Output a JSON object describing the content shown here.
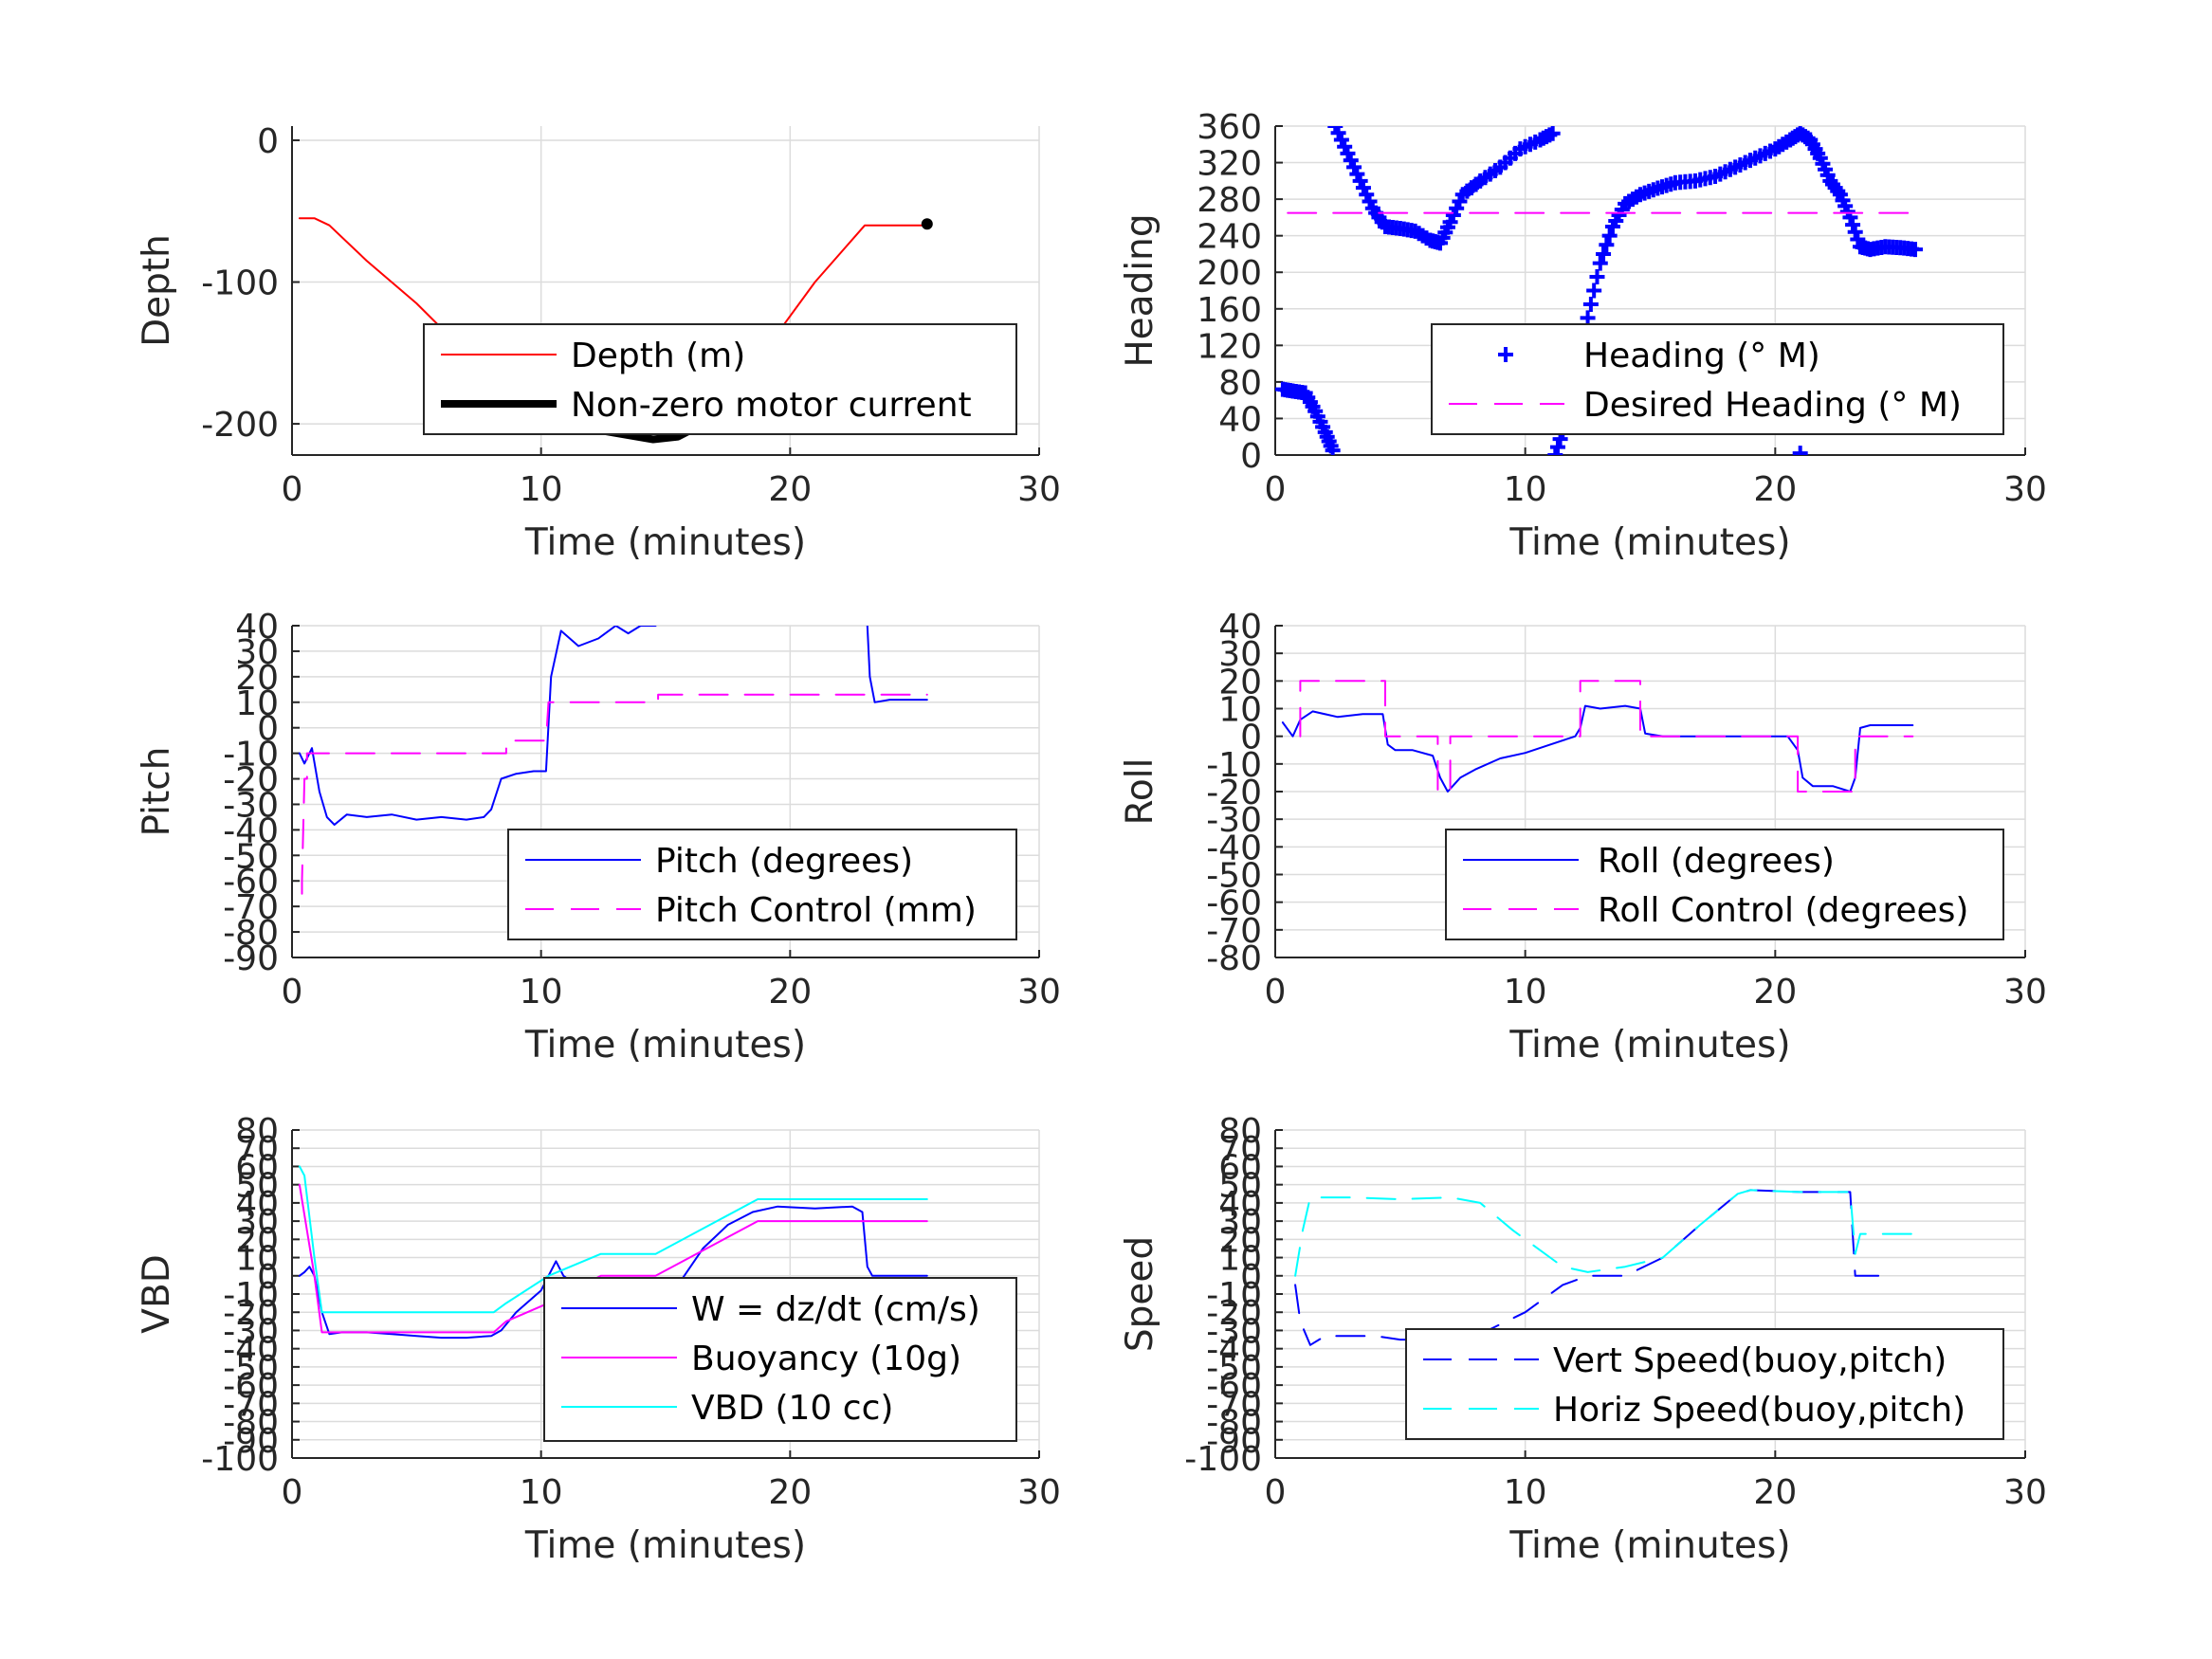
{
  "chart_data": [
    {
      "id": "depth",
      "type": "line",
      "title": "",
      "xlabel": "Time (minutes)",
      "ylabel": "Depth",
      "xlim": [
        0,
        30
      ],
      "ylim": [
        -222,
        10
      ],
      "xticks": [
        0,
        10,
        20,
        30
      ],
      "yticks": [
        0,
        -100,
        -200
      ],
      "grid": true,
      "legend_placement": "lower-right",
      "series": [
        {
          "name": "Depth (m)",
          "style": "solid",
          "color": "#ff0000",
          "x": [
            0.3,
            0.9,
            1.5,
            3,
            5,
            7,
            8.2,
            10,
            12,
            14,
            15,
            16,
            17,
            18,
            19,
            21,
            23,
            25.5
          ],
          "y": [
            -55,
            -55,
            -60,
            -85,
            -115,
            -150,
            -186,
            -198,
            -205,
            -210,
            -210,
            -205,
            -190,
            -170,
            -148,
            -100,
            -60,
            -60
          ]
        },
        {
          "name": "Non-zero motor current",
          "style": "thick",
          "color": "#000000",
          "x": [
            8.2,
            9,
            10,
            10.5,
            11,
            12,
            12.5,
            14.5,
            15.5,
            16.5,
            17.5,
            18.5
          ],
          "y": [
            -186,
            -193,
            -199,
            -198,
            -199,
            -203,
            -205,
            -211,
            -209,
            -200,
            -185,
            -162
          ]
        },
        {
          "name": "",
          "style": "dot",
          "color": "#000000",
          "x": [
            25.5
          ],
          "y": [
            -59
          ]
        }
      ]
    },
    {
      "id": "heading",
      "type": "scatter",
      "title": "",
      "xlabel": "Time (minutes)",
      "ylabel": "Heading",
      "xlim": [
        0,
        30
      ],
      "ylim": [
        0,
        360
      ],
      "xticks": [
        0,
        10,
        20,
        30
      ],
      "yticks": [
        0,
        40,
        80,
        120,
        160,
        200,
        240,
        280,
        320,
        360
      ],
      "grid": true,
      "legend_placement": "lower-right",
      "series": [
        {
          "name": "Heading (° M)",
          "style": "plus",
          "color": "#0000ff",
          "x": [
            0.3,
            0.7,
            1.2,
            1.6,
            2.0,
            2.3,
            2.4,
            2.9,
            3.4,
            3.9,
            4.4,
            5.0,
            5.6,
            6.2,
            6.6,
            7.0,
            7.5,
            8.2,
            9.0,
            9.8,
            10.6,
            11.1,
            11.2,
            11.6,
            12.0,
            12.5,
            13.0,
            13.5,
            14.0,
            14.6,
            15.3,
            16.0,
            16.8,
            17.6,
            18.4,
            19.2,
            20.0,
            20.6,
            21.0,
            21.4,
            21.8,
            22.2,
            22.6,
            23.0,
            23.4,
            23.8,
            24.4,
            25.0,
            25.6,
            21.0
          ],
          "y": [
            72,
            70,
            68,
            48,
            25,
            5,
            360,
            330,
            300,
            270,
            250,
            248,
            245,
            235,
            232,
            255,
            285,
            300,
            315,
            335,
            345,
            352,
            0,
            35,
            90,
            150,
            210,
            250,
            275,
            285,
            292,
            298,
            300,
            305,
            315,
            325,
            335,
            345,
            352,
            345,
            325,
            300,
            285,
            260,
            228,
            225,
            228,
            227,
            225,
            2
          ]
        },
        {
          "name": "Desired Heading (° M)",
          "style": "dashed",
          "color": "#ff00ff",
          "x": [
            0.5,
            25.5
          ],
          "y": [
            265,
            265
          ]
        }
      ]
    },
    {
      "id": "pitch",
      "type": "line",
      "title": "",
      "xlabel": "Time (minutes)",
      "ylabel": "Pitch",
      "xlim": [
        0,
        30
      ],
      "ylim": [
        -90,
        40
      ],
      "xticks": [
        0,
        10,
        20,
        30
      ],
      "yticks": [
        -90,
        -80,
        -70,
        -60,
        -50,
        -40,
        -30,
        -20,
        -10,
        0,
        10,
        20,
        30,
        40
      ],
      "grid": true,
      "legend_placement": "lower-right",
      "series": [
        {
          "name": "Pitch (degrees)",
          "style": "solid",
          "color": "#0000ff",
          "x": [
            0.3,
            0.5,
            0.8,
            1.1,
            1.4,
            1.7,
            2.2,
            3,
            4,
            5,
            6,
            7,
            7.7,
            8,
            8.4,
            9,
            9.7,
            10.2,
            10.4,
            10.8,
            11.5,
            12.3,
            13,
            13.5,
            14,
            14.6,
            null,
            23.1,
            23.2,
            23.4,
            24,
            25.5
          ],
          "y": [
            -10,
            -14,
            -8,
            -25,
            -35,
            -38,
            -34,
            -35,
            -34,
            -36,
            -35,
            -36,
            -35,
            -32,
            -20,
            -18,
            -17,
            -17,
            20,
            38,
            32,
            35,
            40,
            37,
            40,
            40,
            null,
            40,
            20,
            10,
            11,
            11
          ]
        },
        {
          "name": "Pitch Control (mm)",
          "style": "dashed",
          "color": "#ff00ff",
          "x": [
            0.4,
            0.4,
            0.5,
            0.6,
            0.6,
            8.1,
            8.1,
            8.6,
            8.6,
            10.2,
            10.3,
            10.6,
            10.6,
            14.4,
            14.5,
            14.7,
            14.7,
            25.5
          ],
          "y": [
            -65,
            -60,
            -20,
            -20,
            -10,
            -10,
            -10,
            -10,
            -5,
            -5,
            10,
            10,
            10,
            10,
            10,
            10,
            13,
            13
          ]
        }
      ]
    },
    {
      "id": "roll",
      "type": "line",
      "title": "",
      "xlabel": "Time (minutes)",
      "ylabel": "Roll",
      "xlim": [
        0,
        30
      ],
      "ylim": [
        -80,
        40
      ],
      "xticks": [
        0,
        10,
        20,
        30
      ],
      "yticks": [
        -80,
        -70,
        -60,
        -50,
        -40,
        -30,
        -20,
        -10,
        0,
        10,
        20,
        30,
        40
      ],
      "grid": true,
      "legend_placement": "lower-right",
      "series": [
        {
          "name": "Roll (degrees)",
          "style": "solid",
          "color": "#0000ff",
          "x": [
            0.3,
            0.7,
            1.0,
            1.5,
            2.5,
            3.5,
            4.3,
            4.5,
            4.8,
            5.5,
            6.3,
            6.6,
            6.9,
            7.1,
            7.4,
            8,
            9,
            10,
            11,
            12,
            12.2,
            12.4,
            13,
            14,
            14.6,
            14.8,
            15.5,
            17,
            19,
            20.5,
            20.9,
            21.1,
            21.5,
            22.3,
            23.0,
            23.2,
            23.4,
            23.8,
            24.5,
            25.5
          ],
          "y": [
            5,
            0,
            6,
            9,
            7,
            8,
            8,
            -3,
            -5,
            -5,
            -7,
            -15,
            -20,
            -18,
            -15,
            -12,
            -8,
            -6,
            -3,
            0,
            3,
            11,
            10,
            11,
            10,
            1,
            0,
            0,
            0,
            0,
            -5,
            -15,
            -18,
            -18,
            -20,
            -15,
            3,
            4,
            4,
            4
          ]
        },
        {
          "name": "Roll Control (degrees)",
          "style": "dashed",
          "color": "#ff00ff",
          "x": [
            1.0,
            1.0,
            4.4,
            4.4,
            6.5,
            6.5,
            7.0,
            7.0,
            12.2,
            12.2,
            14.6,
            14.6,
            20.9,
            20.9,
            23.2,
            23.2,
            25.5
          ],
          "y": [
            0,
            20,
            20,
            0,
            0,
            -20,
            -20,
            0,
            0,
            20,
            20,
            0,
            0,
            -20,
            -20,
            0,
            0
          ]
        }
      ]
    },
    {
      "id": "vbd",
      "type": "line",
      "title": "",
      "xlabel": "Time (minutes)",
      "ylabel": "VBD",
      "xlim": [
        0,
        30
      ],
      "ylim": [
        -100,
        80
      ],
      "xticks": [
        0,
        10,
        20,
        30
      ],
      "yticks": [
        -100,
        -90,
        -80,
        -70,
        -60,
        -50,
        -40,
        -30,
        -20,
        -10,
        0,
        10,
        20,
        30,
        40,
        50,
        60,
        70,
        80
      ],
      "grid": true,
      "legend_placement": "lower-right",
      "series": [
        {
          "name": "W = dz/dt (cm/s)",
          "style": "solid",
          "color": "#0000ff",
          "x": [
            0.3,
            0.5,
            0.7,
            0.9,
            1.2,
            1.5,
            2,
            3,
            4,
            5,
            6,
            7,
            8,
            8.4,
            9,
            10,
            10.3,
            10.6,
            10.9,
            11.5,
            12.5,
            14,
            15.5,
            16.5,
            17.5,
            18.5,
            19.5,
            21,
            22.5,
            22.9,
            23.1,
            23.3,
            23.5,
            25.5
          ],
          "y": [
            0,
            2,
            5,
            0,
            -20,
            -32,
            -31,
            -31,
            -32,
            -33,
            -34,
            -34,
            -33,
            -30,
            -20,
            -8,
            0,
            8,
            0,
            -6,
            -5,
            -5,
            -5,
            15,
            28,
            35,
            38,
            37,
            38,
            35,
            5,
            0,
            0,
            0
          ]
        },
        {
          "name": "Buoyancy (10g)",
          "style": "solid",
          "color": "#ff00ff",
          "x": [
            0.3,
            0.9,
            1.2,
            8.1,
            8.6,
            10.3,
            12.4,
            14.6,
            18.7,
            25.5
          ],
          "y": [
            50,
            0,
            -31,
            -31,
            -25,
            -15,
            0,
            0,
            30,
            30
          ]
        },
        {
          "name": "VBD (10 cc)",
          "style": "solid",
          "color": "#00ffff",
          "x": [
            0.3,
            0.5,
            0.9,
            1.2,
            8.1,
            8.6,
            10.3,
            12.4,
            14.6,
            18.7,
            25.5
          ],
          "y": [
            60,
            55,
            10,
            -20,
            -20,
            -15,
            0,
            12,
            12,
            42,
            42
          ]
        }
      ]
    },
    {
      "id": "speed",
      "type": "line",
      "title": "",
      "xlabel": "Time (minutes)",
      "ylabel": "Speed",
      "xlim": [
        0,
        30
      ],
      "ylim": [
        -100,
        80
      ],
      "xticks": [
        0,
        10,
        20,
        30
      ],
      "yticks": [
        -100,
        -90,
        -80,
        -70,
        -60,
        -50,
        -40,
        -30,
        -20,
        -10,
        0,
        10,
        20,
        30,
        40,
        50,
        60,
        70,
        80
      ],
      "grid": true,
      "legend_placement": "lower-right",
      "series": [
        {
          "name": "Vert Speed(buoy,pitch)",
          "style": "dashed",
          "color": "#0000ff",
          "x": [
            0.8,
            1.0,
            1.4,
            2,
            3,
            4,
            5,
            6,
            7,
            8,
            8.5,
            10,
            11.5,
            12.5,
            14,
            15.5,
            17,
            18.5,
            19,
            21,
            23.0,
            23.2,
            23.4,
            24.8
          ],
          "y": [
            -5,
            -25,
            -38,
            -33,
            -33,
            -33,
            -35,
            -35,
            -34,
            -33,
            -30,
            -20,
            -5,
            0,
            0,
            10,
            28,
            45,
            47,
            46,
            46,
            0,
            0,
            0
          ]
        },
        {
          "name": "Horiz Speed(buoy,pitch)",
          "style": "dashed",
          "color": "#00ffff",
          "x": [
            0.8,
            1.1,
            1.4,
            3,
            5,
            7,
            8.2,
            9.5,
            11.5,
            12.5,
            14,
            15.5,
            17,
            18.5,
            19,
            21,
            23.0,
            23.2,
            23.4,
            25.5
          ],
          "y": [
            0,
            25,
            43,
            43,
            42,
            43,
            40,
            25,
            5,
            2,
            5,
            10,
            28,
            45,
            47,
            46,
            46,
            12,
            23,
            23
          ]
        }
      ]
    }
  ]
}
